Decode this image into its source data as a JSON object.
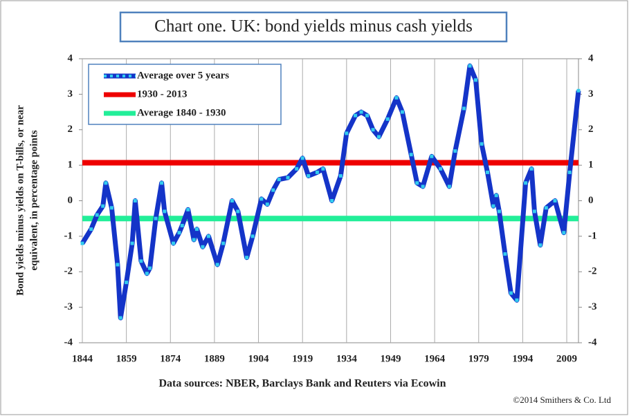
{
  "chart_data": {
    "type": "line",
    "title": "Chart one. UK: bond yields minus cash yields",
    "y_label": [
      "Bond yields minus yields on T-bills, or near",
      "equivalent, in percentage points"
    ],
    "source": "Data sources: NBER, Barclays Bank and Reuters via Ecowin",
    "copyright": "©2014 Smithers & Co. Ltd",
    "xlim": [
      1844,
      2013
    ],
    "xticks": [
      1844,
      1859,
      1874,
      1889,
      1904,
      1919,
      1934,
      1949,
      1964,
      1979,
      1994,
      2009
    ],
    "ylim": [
      -4,
      4
    ],
    "yticks": [
      -4,
      -3,
      -2,
      -1,
      0,
      1,
      2,
      3,
      4
    ],
    "y2lim": [
      -4,
      4
    ],
    "y2ticks": [
      -4,
      -3,
      -2,
      -1,
      0,
      1,
      2,
      3,
      4
    ],
    "grid": true,
    "legend": "upper left",
    "series": [
      {
        "name": "Average over 5 years",
        "color": "#1434c8",
        "marker_color": "#33ccee",
        "x": [
          1844,
          1847,
          1849,
          1851,
          1852,
          1854,
          1856,
          1857,
          1859,
          1861,
          1862,
          1864,
          1866,
          1867,
          1869,
          1871,
          1872,
          1875,
          1877,
          1878,
          1880,
          1882,
          1883,
          1885,
          1887,
          1890,
          1892,
          1895,
          1897,
          1900,
          1902,
          1905,
          1907,
          1909,
          1911,
          1914,
          1917,
          1919,
          1921,
          1924,
          1926,
          1929,
          1932,
          1934,
          1937,
          1939,
          1941,
          1943,
          1945,
          1948,
          1951,
          1953,
          1956,
          1958,
          1960,
          1963,
          1966,
          1969,
          1971,
          1974,
          1976,
          1978,
          1980,
          1982,
          1984,
          1985,
          1986,
          1988,
          1990,
          1992,
          1995,
          1997,
          1998,
          2000,
          2002,
          2005,
          2008,
          2010,
          2013
        ],
        "values": [
          -1.2,
          -0.8,
          -0.4,
          -0.15,
          0.5,
          -0.2,
          -1.8,
          -3.3,
          -2.3,
          -1.2,
          0.0,
          -1.7,
          -2.05,
          -1.9,
          -0.5,
          0.5,
          -0.3,
          -1.2,
          -0.9,
          -0.7,
          -0.25,
          -1.1,
          -0.8,
          -1.3,
          -1.0,
          -1.8,
          -1.2,
          0.0,
          -0.3,
          -1.6,
          -1.0,
          0.05,
          -0.1,
          0.3,
          0.6,
          0.65,
          0.9,
          1.2,
          0.7,
          0.8,
          0.9,
          0.0,
          0.7,
          1.9,
          2.4,
          2.5,
          2.4,
          2.0,
          1.8,
          2.3,
          2.9,
          2.5,
          1.3,
          0.5,
          0.4,
          1.25,
          0.9,
          0.4,
          1.4,
          2.6,
          3.8,
          3.4,
          1.6,
          0.8,
          -0.15,
          0.15,
          -0.3,
          -1.5,
          -2.6,
          -2.8,
          0.5,
          0.9,
          -0.3,
          -1.25,
          -0.2,
          0.0,
          -0.9,
          0.8,
          3.1
        ]
      },
      {
        "name": "1930 - 2013",
        "color": "#ee0000",
        "x": [
          1844,
          2013
        ],
        "values": [
          1.07,
          1.07
        ]
      },
      {
        "name": "Average 1840 - 1930",
        "color": "#22ee99",
        "x": [
          1844,
          2013
        ],
        "values": [
          -0.5,
          -0.5
        ]
      }
    ]
  }
}
